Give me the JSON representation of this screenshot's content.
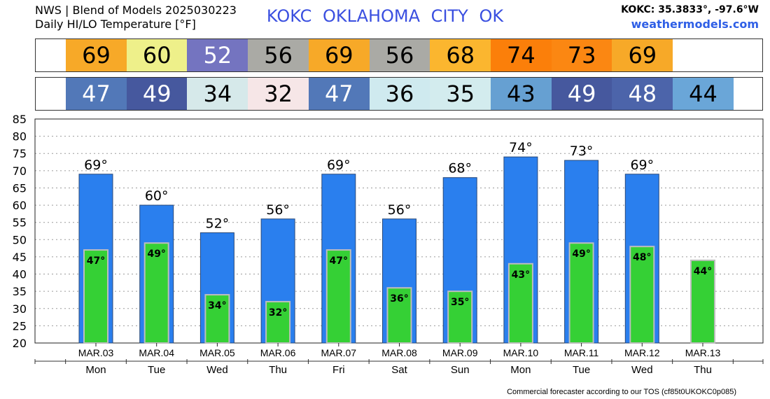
{
  "header": {
    "title_line1": "NWS | Blend of Models 2025030223",
    "title_line2": "Daily HI/LO Temperature [°F]",
    "station": "KOKC   OKLAHOMA CITY   OK",
    "coords": "KOKC: 35.3833°, -97.6°W",
    "site": "weathermodels.com"
  },
  "footer": "Commercial forecaster according to our TOS (cf85t0UKOKC0p085)",
  "hi_band": [
    {
      "value": "69",
      "bg": "#f7a928",
      "fg": "#000000"
    },
    {
      "value": "60",
      "bg": "#eef08a",
      "fg": "#000000"
    },
    {
      "value": "52",
      "bg": "#7474c0",
      "fg": "#ffffff"
    },
    {
      "value": "56",
      "bg": "#aaaaa5",
      "fg": "#000000"
    },
    {
      "value": "69",
      "bg": "#f7a928",
      "fg": "#000000"
    },
    {
      "value": "56",
      "bg": "#aaaaa5",
      "fg": "#000000"
    },
    {
      "value": "68",
      "bg": "#fbb62f",
      "fg": "#000000"
    },
    {
      "value": "74",
      "bg": "#fb7f0a",
      "fg": "#000000"
    },
    {
      "value": "73",
      "bg": "#fb8712",
      "fg": "#000000"
    },
    {
      "value": "69",
      "bg": "#f7a928",
      "fg": "#000000"
    }
  ],
  "lo_band": [
    {
      "value": "47",
      "bg": "#5278b8",
      "fg": "#ffffff"
    },
    {
      "value": "49",
      "bg": "#46589e",
      "fg": "#ffffff"
    },
    {
      "value": "34",
      "bg": "#d6e9ea",
      "fg": "#000000"
    },
    {
      "value": "32",
      "bg": "#f6e6e7",
      "fg": "#000000"
    },
    {
      "value": "47",
      "bg": "#5278b8",
      "fg": "#ffffff"
    },
    {
      "value": "36",
      "bg": "#cfeaef",
      "fg": "#000000"
    },
    {
      "value": "35",
      "bg": "#d3ecee",
      "fg": "#000000"
    },
    {
      "value": "43",
      "bg": "#66a0d2",
      "fg": "#000000"
    },
    {
      "value": "49",
      "bg": "#46589e",
      "fg": "#ffffff"
    },
    {
      "value": "48",
      "bg": "#4c64aa",
      "fg": "#ffffff"
    },
    {
      "value": "44",
      "bg": "#6aa6d8",
      "fg": "#000000"
    }
  ],
  "chart_data": {
    "type": "bar",
    "categories": [
      "MAR.03",
      "MAR.04",
      "MAR.05",
      "MAR.06",
      "MAR.07",
      "MAR.08",
      "MAR.09",
      "MAR.10",
      "MAR.11",
      "MAR.12",
      "MAR.13"
    ],
    "weekdays": [
      "Mon",
      "Tue",
      "Wed",
      "Thu",
      "Fri",
      "Sat",
      "Sun",
      "Mon",
      "Tue",
      "Wed",
      "Thu"
    ],
    "series": [
      {
        "values": [
          69,
          60,
          52,
          56,
          69,
          56,
          68,
          74,
          73,
          69,
          null
        ],
        "color": "#2a7fee"
      },
      {
        "values": [
          47,
          49,
          34,
          32,
          47,
          36,
          35,
          43,
          49,
          48,
          44
        ],
        "color": "#35d035"
      }
    ],
    "hi_labels": [
      "69°",
      "60°",
      "52°",
      "56°",
      "69°",
      "56°",
      "68°",
      "74°",
      "73°",
      "69°",
      ""
    ],
    "lo_labels": [
      "47°",
      "49°",
      "34°",
      "32°",
      "47°",
      "36°",
      "35°",
      "43°",
      "49°",
      "48°",
      "44°"
    ],
    "yticks": [
      "20",
      "25",
      "30",
      "35",
      "40",
      "45",
      "50",
      "55",
      "60",
      "65",
      "70",
      "75",
      "80",
      "85"
    ],
    "ylim": [
      20,
      85
    ],
    "grid": true
  }
}
